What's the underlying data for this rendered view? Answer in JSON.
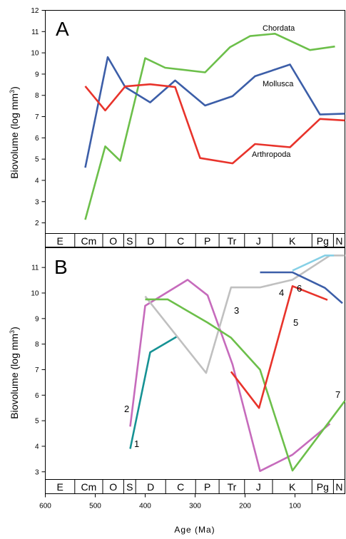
{
  "chart_data": [
    {
      "type": "line",
      "panel": "A",
      "ylabel": "Biovolume (log mm3)",
      "ylabel_main": "Biovolume (log mm",
      "ylabel_sup": "3",
      "ylabel_end": ")",
      "xlim": [
        600,
        0
      ],
      "ylim": [
        1.5,
        12
      ],
      "yticks": [
        2,
        3,
        4,
        5,
        6,
        7,
        8,
        9,
        10,
        11,
        12
      ],
      "periods": [
        {
          "label": "E",
          "start": 600,
          "end": 541
        },
        {
          "label": "Cm",
          "start": 541,
          "end": 485
        },
        {
          "label": "O",
          "start": 485,
          "end": 443
        },
        {
          "label": "S",
          "start": 443,
          "end": 419
        },
        {
          "label": "D",
          "start": 419,
          "end": 359
        },
        {
          "label": "C",
          "start": 359,
          "end": 299
        },
        {
          "label": "P",
          "start": 299,
          "end": 252
        },
        {
          "label": "Tr",
          "start": 252,
          "end": 201
        },
        {
          "label": "J",
          "start": 201,
          "end": 145
        },
        {
          "label": "K",
          "start": 145,
          "end": 66
        },
        {
          "label": "Pg",
          "start": 66,
          "end": 23
        },
        {
          "label": "N",
          "start": 23,
          "end": 0
        }
      ],
      "series": [
        {
          "name": "Chordata",
          "color": "#6cbf4a",
          "x": [
            520,
            480,
            450,
            400,
            360,
            280,
            230,
            190,
            140,
            70,
            20
          ],
          "y": [
            2.15,
            5.6,
            4.92,
            9.75,
            9.3,
            9.08,
            10.27,
            10.79,
            10.9,
            10.13,
            10.3
          ]
        },
        {
          "name": "Mollusca",
          "color": "#3c5ea8",
          "x": [
            520,
            475,
            440,
            390,
            340,
            280,
            225,
            180,
            110,
            50,
            0
          ],
          "y": [
            4.6,
            9.8,
            8.39,
            7.67,
            8.7,
            7.52,
            7.96,
            8.9,
            9.45,
            7.1,
            7.14
          ]
        },
        {
          "name": "Arthropoda",
          "color": "#e8332b",
          "x": [
            520,
            480,
            440,
            390,
            340,
            290,
            225,
            180,
            110,
            50,
            0
          ],
          "y": [
            8.43,
            7.29,
            8.42,
            8.52,
            8.39,
            5.05,
            4.8,
            5.71,
            5.56,
            6.89,
            6.82
          ]
        }
      ]
    },
    {
      "type": "line",
      "panel": "B",
      "ylabel": "Biovolume (log mm3)",
      "ylabel_main": "Biovolume (log mm",
      "ylabel_sup": "3",
      "ylabel_end": ")",
      "xlabel": "Age (Ma)",
      "xlim": [
        600,
        0
      ],
      "ylim": [
        2.7,
        11.8
      ],
      "yticks": [
        3,
        4,
        5,
        6,
        7,
        8,
        9,
        10,
        11
      ],
      "xticks": [
        600,
        500,
        400,
        300,
        200,
        100
      ],
      "periods": [
        {
          "label": "E",
          "start": 600,
          "end": 541
        },
        {
          "label": "Cm",
          "start": 541,
          "end": 485
        },
        {
          "label": "O",
          "start": 485,
          "end": 443
        },
        {
          "label": "S",
          "start": 443,
          "end": 419
        },
        {
          "label": "D",
          "start": 419,
          "end": 359
        },
        {
          "label": "C",
          "start": 359,
          "end": 299
        },
        {
          "label": "P",
          "start": 299,
          "end": 252
        },
        {
          "label": "Tr",
          "start": 252,
          "end": 201
        },
        {
          "label": "J",
          "start": 201,
          "end": 145
        },
        {
          "label": "K",
          "start": 145,
          "end": 66
        },
        {
          "label": "Pg",
          "start": 66,
          "end": 23
        },
        {
          "label": "N",
          "start": 23,
          "end": 0
        }
      ],
      "series": [
        {
          "name": "1",
          "color": "#169294",
          "x": [
            430,
            390,
            335
          ],
          "y": [
            3.9,
            7.68,
            8.31
          ]
        },
        {
          "name": "2",
          "color": "#c66bbc",
          "x": [
            430,
            400,
            315,
            275,
            225,
            170,
            105,
            30
          ],
          "y": [
            4.77,
            9.5,
            10.52,
            9.91,
            7.2,
            3.03,
            3.67,
            4.88
          ]
        },
        {
          "name": "3",
          "color": "#c0c0c0",
          "x": [
            400,
            278,
            228,
            170,
            105,
            30,
            0
          ],
          "y": [
            9.87,
            6.87,
            10.22,
            10.22,
            10.52,
            11.47,
            11.47
          ]
        },
        {
          "name": "7",
          "color": "#6cbf4a",
          "x": [
            400,
            355,
            275,
            228,
            170,
            105,
            0
          ],
          "y": [
            9.75,
            9.75,
            8.84,
            8.25,
            7.0,
            3.05,
            5.78
          ]
        },
        {
          "name": "5",
          "color": "#e8332b",
          "x": [
            228,
            172,
            105,
            35
          ],
          "y": [
            6.92,
            5.5,
            10.27,
            9.73
          ]
        },
        {
          "name": "4",
          "color": "#3c5ea8",
          "x": [
            170,
            105,
            40,
            5
          ],
          "y": [
            10.81,
            10.81,
            10.2,
            9.6
          ]
        },
        {
          "name": "6",
          "color": "#86d0e6",
          "x": [
            105,
            40,
            22
          ],
          "y": [
            10.88,
            11.47,
            11.47
          ]
        }
      ]
    }
  ]
}
